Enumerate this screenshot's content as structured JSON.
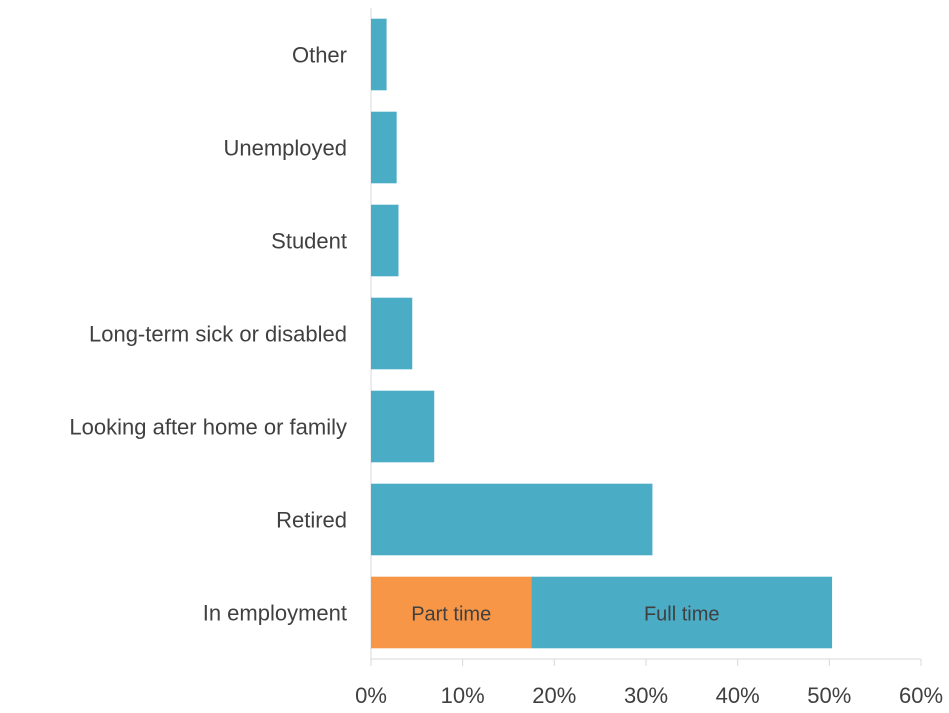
{
  "chart_data": {
    "type": "bar",
    "orientation": "horizontal",
    "stacked": true,
    "categories": [
      "In employment",
      "Retired",
      "Looking after home or family",
      "Long-term sick or disabled",
      "Student",
      "Unemployed",
      "Other"
    ],
    "series": [
      {
        "label": "Part time",
        "color": "#f79646",
        "values": [
          17.5,
          0,
          0,
          0,
          0,
          0,
          0
        ]
      },
      {
        "label": "Full time",
        "color": "#4bacc6",
        "values": [
          32.8,
          30.7,
          6.9,
          4.5,
          3.0,
          2.8,
          1.7
        ]
      }
    ],
    "xlim": [
      0,
      60
    ],
    "xticks": [
      "0%",
      "10%",
      "20%",
      "30%",
      "40%",
      "50%",
      "60%"
    ],
    "xtick_values": [
      0,
      10,
      20,
      30,
      40,
      50,
      60
    ],
    "grid": false,
    "legend": "none"
  }
}
